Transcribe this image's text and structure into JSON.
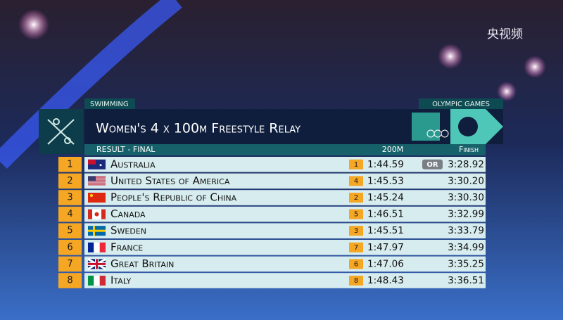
{
  "watermark": "央视频",
  "header": {
    "sport": "Swimming",
    "games": "OLYMPIC GAMES",
    "title": "Women's 4 x 100m Freestyle Relay",
    "stage": "RESULT - FINAL",
    "split_col": "200m",
    "finish_col": "Finish"
  },
  "table": {
    "rows": [
      {
        "rank": "1",
        "country": "Australia",
        "split_rank": "1",
        "split": "1:44.59",
        "record": "OR",
        "finish": "3:28.92"
      },
      {
        "rank": "2",
        "country": "United States of America",
        "split_rank": "4",
        "split": "1:45.53",
        "finish": "3:30.20"
      },
      {
        "rank": "3",
        "country": "People's Republic of China",
        "split_rank": "2",
        "split": "1:45.24",
        "finish": "3:30.30"
      },
      {
        "rank": "4",
        "country": "Canada",
        "split_rank": "5",
        "split": "1:46.51",
        "finish": "3:32.99"
      },
      {
        "rank": "5",
        "country": "Sweden",
        "split_rank": "3",
        "split": "1:45.51",
        "finish": "3:33.79"
      },
      {
        "rank": "6",
        "country": "France",
        "split_rank": "7",
        "split": "1:47.97",
        "finish": "3:34.99"
      },
      {
        "rank": "7",
        "country": "Great Britain",
        "split_rank": "6",
        "split": "1:47.06",
        "finish": "3:35.25"
      },
      {
        "rank": "8",
        "country": "Italy",
        "split_rank": "8",
        "split": "1:48.43",
        "finish": "3:36.51"
      }
    ]
  }
}
